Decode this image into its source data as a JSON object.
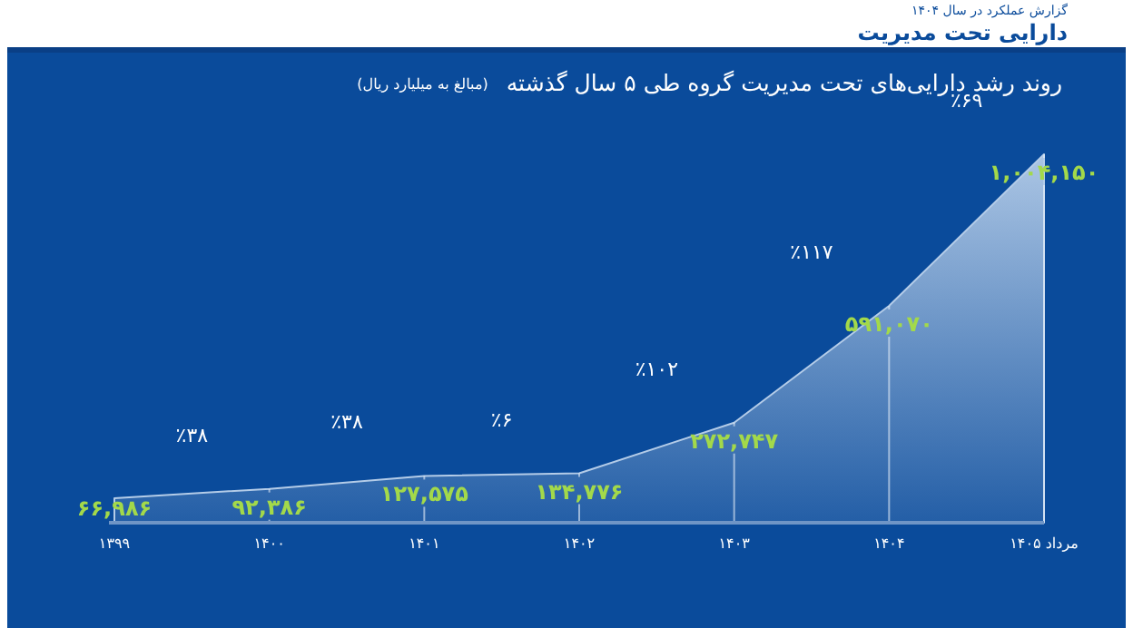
{
  "chart_data": {
    "type": "area",
    "title": "روند رشد دارایی‌های تحت مدیریت گروه طی ۵ سال گذشته",
    "subtitle": "(مبالغ به میلیارد ریال)",
    "annotations": [
      "گزارش عملکرد در سال ۱۴۰۴",
      "دارایی تحت مدیریت",
      "٪۳۸",
      "٪۳۸",
      "٪۶",
      "٪۱۰۲",
      "٪۱۱۷",
      "٪۶۹"
    ],
    "categories": [
      "۱۳۹۹",
      "۱۴۰۰",
      "۱۴۰۱",
      "۱۴۰۲",
      "۱۴۰۳",
      "۱۴۰۴",
      "مرداد ۱۴۰۵"
    ],
    "series": [
      {
        "color": "#b4cce8",
        "values": [
          66986,
          92386,
          127575,
          134776,
          272747,
          591070,
          1004150
        ],
        "value_labels": [
          "۶۶,۹۸۶",
          "۹۲,۳۸۶",
          "۱۲۷,۵۷۵",
          "۱۳۴,۷۷۶",
          "۲۷۲,۷۴۷",
          "۵۹۱,۰۷۰",
          "۱,۰۰۴,۱۵۰"
        ]
      }
    ]
  }
}
